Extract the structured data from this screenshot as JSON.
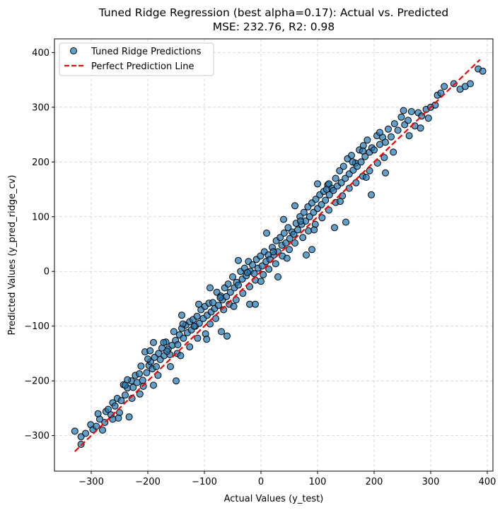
{
  "chart_data": {
    "type": "scatter",
    "title": "Tuned Ridge Regression (best alpha=0.17): Actual vs. Predicted",
    "subtitle": "MSE: 232.76, R2: 0.98",
    "xlabel": "Actual Values (y_test)",
    "ylabel": "Predicted Values (y_pred_ridge_cv)",
    "xlim": [
      -365,
      410
    ],
    "ylim": [
      -365,
      425
    ],
    "xticks": [
      -300,
      -200,
      -100,
      0,
      100,
      200,
      300,
      400
    ],
    "yticks": [
      -300,
      -200,
      -100,
      0,
      100,
      200,
      300,
      400
    ],
    "grid": true,
    "legend_position": "top-left",
    "series": [
      {
        "name": "Tuned Ridge Predictions",
        "kind": "scatter",
        "color": "#1f77b4",
        "points": [
          [
            -329,
            -292
          ],
          [
            -318,
            -302
          ],
          [
            -301,
            -280
          ],
          [
            -297,
            -289
          ],
          [
            -291,
            -283
          ],
          [
            -285,
            -270
          ],
          [
            -280,
            -290
          ],
          [
            -274,
            -256
          ],
          [
            -270,
            -252
          ],
          [
            -265,
            -262
          ],
          [
            -262,
            -240
          ],
          [
            -258,
            -246
          ],
          [
            -254,
            -232
          ],
          [
            -250,
            -258
          ],
          [
            -247,
            -236
          ],
          [
            -243,
            -207
          ],
          [
            -240,
            -226
          ],
          [
            -236,
            -213
          ],
          [
            -233,
            -266
          ],
          [
            -229,
            -200
          ],
          [
            -226,
            -212
          ],
          [
            -222,
            -190
          ],
          [
            -219,
            -203
          ],
          [
            -215,
            -187
          ],
          [
            -212,
            -173
          ],
          [
            -209,
            -199
          ],
          [
            -205,
            -147
          ],
          [
            -202,
            -185
          ],
          [
            -198,
            -172
          ],
          [
            -195,
            -165
          ],
          [
            -192,
            -178
          ],
          [
            -188,
            -157
          ],
          [
            -185,
            -174
          ],
          [
            -181,
            -150
          ],
          [
            -178,
            -161
          ],
          [
            -175,
            -140
          ],
          [
            -171,
            -154
          ],
          [
            -168,
            -129
          ],
          [
            -164,
            -142
          ],
          [
            -161,
            -152
          ],
          [
            -157,
            -135
          ],
          [
            -154,
            -110
          ],
          [
            -151,
            -126
          ],
          [
            -147,
            -134
          ],
          [
            -144,
            -116
          ],
          [
            -140,
            -104
          ],
          [
            -137,
            -122
          ],
          [
            -133,
            -98
          ],
          [
            -130,
            -112
          ],
          [
            -126,
            -92
          ],
          [
            -123,
            -107
          ],
          [
            -120,
            -88
          ],
          [
            -116,
            -100
          ],
          [
            -113,
            -82
          ],
          [
            -109,
            -95
          ],
          [
            -106,
            -70
          ],
          [
            -102,
            -86
          ],
          [
            -99,
            -64
          ],
          [
            -95,
            -80
          ],
          [
            -92,
            -58
          ],
          [
            -88,
            -74
          ],
          [
            -85,
            -57
          ],
          [
            -82,
            -68
          ],
          [
            -78,
            -38
          ],
          [
            -75,
            -62
          ],
          [
            -71,
            -45
          ],
          [
            -68,
            -52
          ],
          [
            -64,
            -30
          ],
          [
            -61,
            -46
          ],
          [
            -58,
            -23
          ],
          [
            -54,
            -38
          ],
          [
            -50,
            -10
          ],
          [
            -47,
            -30
          ],
          [
            -43,
            -20
          ],
          [
            -40,
            -25
          ],
          [
            -36,
            0
          ],
          [
            -33,
            -14
          ],
          [
            -29,
            6
          ],
          [
            -26,
            -8
          ],
          [
            -22,
            18
          ],
          [
            -19,
            0
          ],
          [
            -15,
            12
          ],
          [
            -12,
            -4
          ],
          [
            -8,
            22
          ],
          [
            -5,
            6
          ],
          [
            -1,
            28
          ],
          [
            2,
            10
          ],
          [
            6,
            36
          ],
          [
            9,
            18
          ],
          [
            13,
            30
          ],
          [
            16,
            22
          ],
          [
            20,
            44
          ],
          [
            23,
            30
          ],
          [
            27,
            56
          ],
          [
            30,
            36
          ],
          [
            34,
            62
          ],
          [
            37,
            48
          ],
          [
            41,
            70
          ],
          [
            44,
            52
          ],
          [
            48,
            80
          ],
          [
            51,
            60
          ],
          [
            55,
            72
          ],
          [
            58,
            68
          ],
          [
            62,
            88
          ],
          [
            65,
            76
          ],
          [
            69,
            100
          ],
          [
            72,
            86
          ],
          [
            76,
            108
          ],
          [
            79,
            92
          ],
          [
            83,
            118
          ],
          [
            86,
            100
          ],
          [
            90,
            125
          ],
          [
            93,
            108
          ],
          [
            97,
            132
          ],
          [
            100,
            115
          ],
          [
            104,
            140
          ],
          [
            107,
            122
          ],
          [
            111,
            146
          ],
          [
            114,
            130
          ],
          [
            118,
            158
          ],
          [
            121,
            140
          ],
          [
            125,
            152
          ],
          [
            128,
            148
          ],
          [
            132,
            170
          ],
          [
            135,
            156
          ],
          [
            139,
            184
          ],
          [
            142,
            162
          ],
          [
            146,
            192
          ],
          [
            149,
            170
          ],
          [
            153,
            206
          ],
          [
            156,
            178
          ],
          [
            160,
            212
          ],
          [
            163,
            185
          ],
          [
            167,
            198
          ],
          [
            170,
            192
          ],
          [
            174,
            222
          ],
          [
            177,
            200
          ],
          [
            181,
            230
          ],
          [
            184,
            210
          ],
          [
            188,
            240
          ],
          [
            192,
            218
          ],
          [
            196,
            226
          ],
          [
            200,
            222
          ],
          [
            205,
            248
          ],
          [
            210,
            232
          ],
          [
            215,
            245
          ],
          [
            220,
            236
          ],
          [
            225,
            260
          ],
          [
            230,
            246
          ],
          [
            236,
            270
          ],
          [
            242,
            258
          ],
          [
            248,
            282
          ],
          [
            254,
            268
          ],
          [
            260,
            276
          ],
          [
            266,
            292
          ],
          [
            272,
            266
          ],
          [
            278,
            290
          ],
          [
            284,
            284
          ],
          [
            292,
            296
          ],
          [
            300,
            300
          ],
          [
            312,
            322
          ],
          [
            324,
            338
          ],
          [
            341,
            343
          ],
          [
            352,
            333
          ],
          [
            361,
            338
          ],
          [
            370,
            343
          ],
          [
            384,
            370
          ],
          [
            392,
            366
          ],
          [
            -310,
            -296
          ],
          [
            -276,
            -276
          ],
          [
            -252,
            -268
          ],
          [
            -240,
            -208
          ],
          [
            -228,
            -232
          ],
          [
            -208,
            -210
          ],
          [
            -196,
            -145
          ],
          [
            -182,
            -190
          ],
          [
            -172,
            -130
          ],
          [
            -160,
            -174
          ],
          [
            -148,
            -150
          ],
          [
            -138,
            -96
          ],
          [
            -126,
            -138
          ],
          [
            -112,
            -122
          ],
          [
            -98,
            -114
          ],
          [
            -90,
            -96
          ],
          [
            -80,
            -86
          ],
          [
            -66,
            -70
          ],
          [
            -56,
            -60
          ],
          [
            -44,
            -52
          ],
          [
            -32,
            -40
          ],
          [
            -20,
            -28
          ],
          [
            -10,
            -16
          ],
          [
            4,
            -6
          ],
          [
            14,
            4
          ],
          [
            26,
            14
          ],
          [
            38,
            28
          ],
          [
            50,
            40
          ],
          [
            60,
            52
          ],
          [
            74,
            62
          ],
          [
            84,
            74
          ],
          [
            96,
            86
          ],
          [
            108,
            98
          ],
          [
            120,
            112
          ],
          [
            132,
            126
          ],
          [
            144,
            138
          ],
          [
            156,
            152
          ],
          [
            168,
            162
          ],
          [
            180,
            174
          ],
          [
            192,
            184
          ],
          [
            206,
            198
          ],
          [
            218,
            208
          ],
          [
            -318,
            -316
          ],
          [
            -288,
            -260
          ],
          [
            -262,
            -270
          ],
          [
            -236,
            -198
          ],
          [
            -214,
            -224
          ],
          [
            -190,
            -208
          ],
          [
            -166,
            -146
          ],
          [
            -142,
            -154
          ],
          [
            -118,
            -100
          ],
          [
            -96,
            -124
          ],
          [
            -72,
            -48
          ],
          [
            -48,
            -64
          ],
          [
            -24,
            -2
          ],
          [
            0,
            -18
          ],
          [
            22,
            36
          ],
          [
            46,
            24
          ],
          [
            70,
            92
          ],
          [
            94,
            76
          ],
          [
            116,
            150
          ],
          [
            140,
            128
          ],
          [
            162,
            200
          ],
          [
            186,
            172
          ],
          [
            210,
            254
          ],
          [
            234,
            218
          ],
          [
            252,
            294
          ],
          [
            262,
            248
          ],
          [
            282,
            262
          ],
          [
            296,
            280
          ],
          [
            308,
            304
          ],
          [
            318,
            326
          ],
          [
            -70,
            -110
          ],
          [
            -20,
            -60
          ],
          [
            30,
            -10
          ],
          [
            80,
            30
          ],
          [
            130,
            80
          ],
          [
            180,
            220
          ],
          [
            60,
            120
          ],
          [
            10,
            70
          ],
          [
            -40,
            20
          ],
          [
            -90,
            -30
          ],
          [
            -140,
            -80
          ],
          [
            -190,
            -130
          ],
          [
            -60,
            -118
          ],
          [
            150,
            90
          ],
          [
            195,
            140
          ],
          [
            -150,
            -200
          ],
          [
            100,
            160
          ],
          [
            -110,
            -60
          ],
          [
            40,
            95
          ],
          [
            -10,
            -60
          ],
          [
            120,
            160
          ],
          [
            -200,
            -160
          ],
          [
            90,
            40
          ],
          [
            220,
            180
          ]
        ]
      },
      {
        "name": "Perfect Prediction Line",
        "kind": "line",
        "color": "#ff0000",
        "dash": "dashed",
        "x": [
          -329,
          387
        ],
        "y": [
          -329,
          387
        ]
      }
    ]
  }
}
